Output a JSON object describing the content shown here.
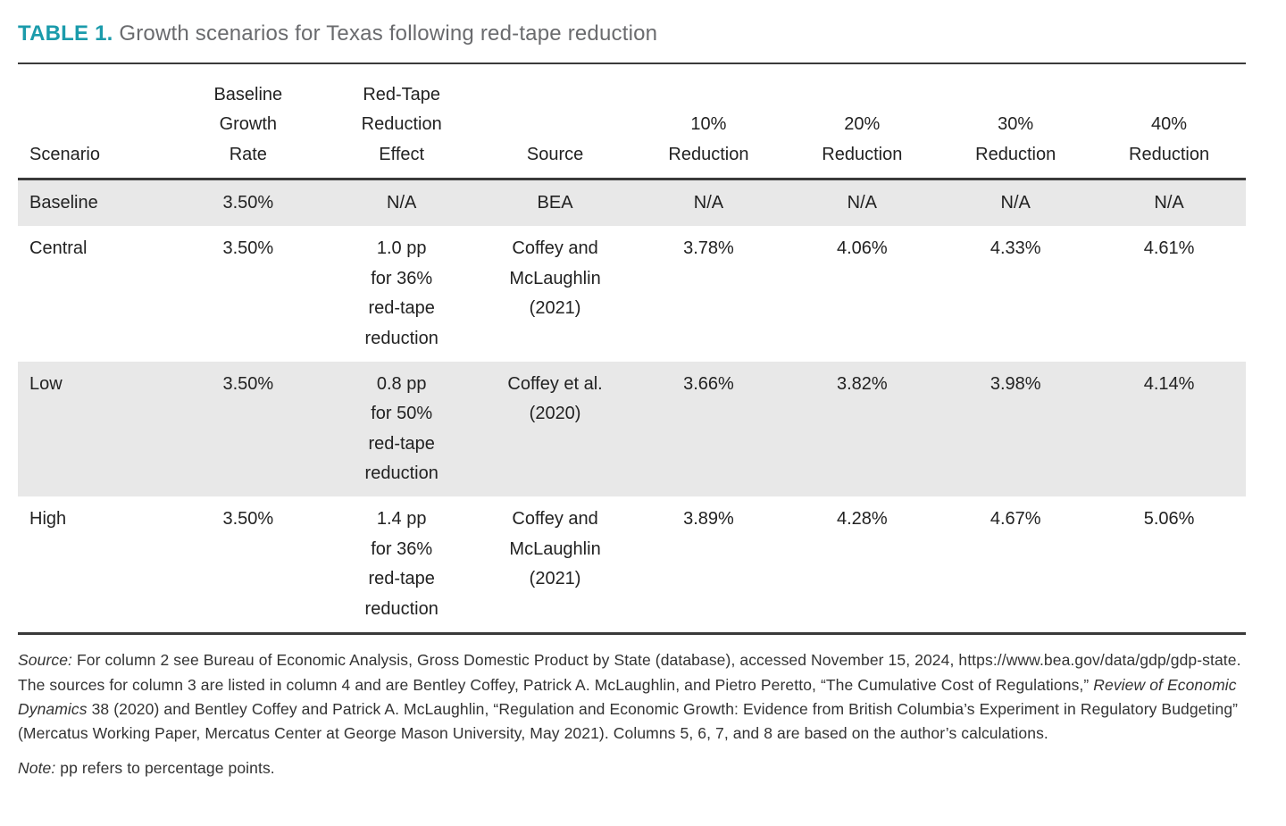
{
  "page": {
    "title_label": "TABLE 1.",
    "title_text": " Growth scenarios for Texas following red-tape reduction"
  },
  "colors": {
    "accent_teal": "#1b9bab",
    "title_gray": "#6a6b6e",
    "row_shade": "#e8e8e8",
    "rule": "#3a3a3a",
    "body_text": "#222222"
  },
  "table": {
    "columns": [
      "Scenario",
      "Baseline\nGrowth\nRate",
      "Red-Tape\nReduction\nEffect",
      "Source",
      "10%\nReduction",
      "20%\nReduction",
      "30%\nReduction",
      "40%\nReduction"
    ],
    "rows": [
      {
        "shaded": true,
        "cells": [
          "Baseline",
          "3.50%",
          "N/A",
          "BEA",
          "N/A",
          "N/A",
          "N/A",
          "N/A"
        ]
      },
      {
        "shaded": false,
        "cells": [
          "Central",
          "3.50%",
          "1.0 pp\nfor 36%\nred-tape\nreduction",
          "Coffey and\nMcLaughlin\n(2021)",
          "3.78%",
          "4.06%",
          "4.33%",
          "4.61%"
        ]
      },
      {
        "shaded": true,
        "cells": [
          "Low",
          "3.50%",
          "0.8 pp\nfor 50%\nred-tape\nreduction",
          "Coffey et al.\n(2020)",
          "3.66%",
          "3.82%",
          "3.98%",
          "4.14%"
        ]
      },
      {
        "shaded": false,
        "cells": [
          "High",
          "3.50%",
          "1.4 pp\nfor 36%\nred-tape\nreduction",
          "Coffey and\nMcLaughlin\n(2021)",
          "3.89%",
          "4.28%",
          "4.67%",
          "5.06%"
        ]
      }
    ]
  },
  "footnotes": {
    "source_segments": [
      {
        "text": "Source:",
        "italic": true
      },
      {
        "text": " For column 2 see Bureau of Economic Analysis, Gross Domestic Product by State (database), accessed November 15, 2024, https://www.bea.gov/data/gdp/gdp-state. The sources for column 3 are listed in column 4 and are Bentley Coffey, Patrick A. McLaughlin, and Pietro Peretto, “The Cumulative Cost of Regulations,” ",
        "italic": false
      },
      {
        "text": "Review of Economic Dynamics",
        "italic": true
      },
      {
        "text": " 38 (2020) and Bentley Coffey and Patrick A. McLaughlin, “Regulation and Economic Growth: Evidence from British Columbia’s Experiment in Regulatory Budgeting” (Mercatus Working Paper, Mercatus Center at George Mason University, May 2021). Columns 5, 6, 7, and 8 are based on the author’s calculations.",
        "italic": false
      }
    ],
    "note_segments": [
      {
        "text": "Note:",
        "italic": true
      },
      {
        "text": " pp refers to percentage points.",
        "italic": false
      }
    ]
  }
}
